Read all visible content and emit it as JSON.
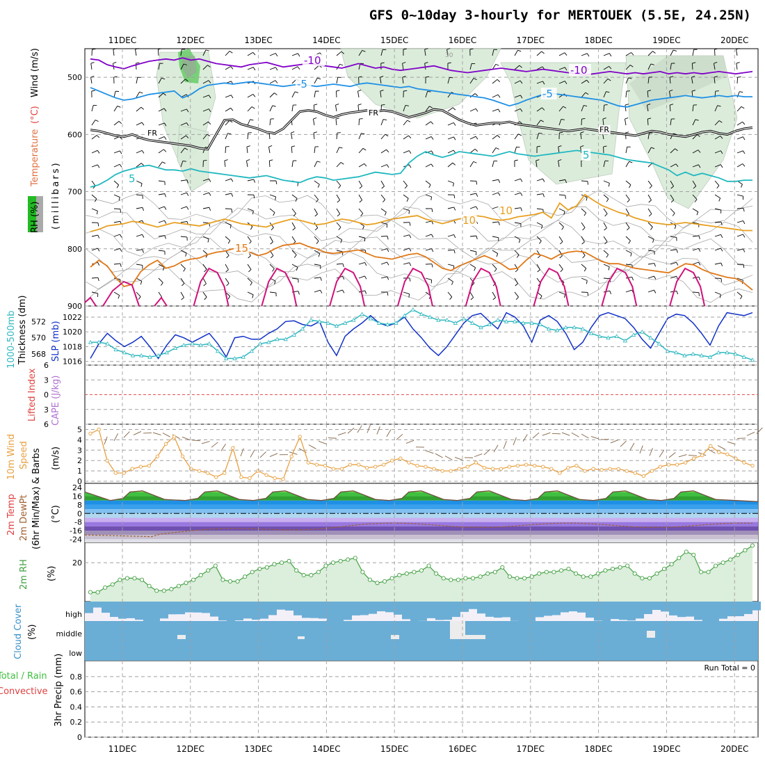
{
  "title": "GFS 0~10day 3-hourly for MERTOUEK (5.5E, 24.25N)",
  "dates": [
    "11DEC",
    "12DEC",
    "13DEC",
    "14DEC",
    "15DEC",
    "16DEC",
    "17DEC",
    "18DEC",
    "19DEC",
    "20DEC"
  ],
  "colors": {
    "purple": "#8000c8",
    "blue": "#1e90e6",
    "cyan": "#20b8c0",
    "orange_l": "#e8a020",
    "orange": "#e07818",
    "magenta": "#d0107a",
    "black": "#000000",
    "slp": "#1030c8",
    "thick": "#30b8c0",
    "wind": "#e8a040",
    "rh": "#40a040",
    "cloud": "#6aaed6"
  },
  "chart_data": [
    {
      "type": "line",
      "title": "",
      "panel": "upper-air",
      "ylabel_left": [
        "RH (%)",
        "Temperature (°C)",
        "Wind (m/s)"
      ],
      "ylabel_right": "(millibars)",
      "yticks": [
        500,
        600,
        700,
        800,
        900
      ],
      "ylim": [
        450,
        900
      ],
      "contour_labels": [
        "-10",
        "-10",
        "-5",
        "-5",
        "FR",
        "FR",
        "FR",
        "5",
        "5",
        "10",
        "10",
        "15",
        "30"
      ],
      "series": [
        {
          "color": "purple",
          "label": "-10",
          "values": [
            468,
            470,
            478,
            482,
            485,
            480,
            476,
            472,
            470,
            468,
            470,
            466,
            470,
            468,
            472,
            476,
            478,
            480,
            482,
            478,
            476,
            474,
            478,
            482,
            480,
            478,
            476,
            478,
            480,
            482,
            484,
            480,
            476,
            480,
            484,
            482,
            486,
            488,
            486,
            484,
            482,
            480,
            484,
            488,
            490,
            492,
            490,
            488,
            486,
            484,
            486,
            488,
            490,
            488,
            486,
            488,
            490,
            492,
            494,
            496,
            494,
            492,
            490,
            492,
            494,
            492,
            494,
            492,
            490,
            494,
            492,
            494,
            492,
            494,
            492,
            490,
            492,
            494,
            492,
            490
          ]
        },
        {
          "color": "blue",
          "label": "-5",
          "values": [
            518,
            524,
            530,
            536,
            540,
            538,
            534,
            530,
            528,
            526,
            524,
            536,
            530,
            520,
            514,
            512,
            510,
            512,
            510,
            508,
            510,
            512,
            514,
            516,
            514,
            512,
            514,
            516,
            514,
            512,
            514,
            516,
            512,
            510,
            512,
            514,
            516,
            518,
            516,
            520,
            522,
            524,
            526,
            528,
            530,
            532,
            534,
            536,
            540,
            545,
            550,
            546,
            540,
            535,
            530,
            528,
            530,
            532,
            534,
            536,
            538,
            540,
            545,
            550,
            552,
            548,
            544,
            540,
            538,
            536,
            534,
            532,
            534,
            536,
            534,
            532,
            534,
            532,
            534,
            534
          ]
        },
        {
          "color": "black",
          "label": "FR",
          "values": [
            592,
            594,
            598,
            602,
            604,
            600,
            606,
            610,
            612,
            614,
            616,
            618,
            620,
            624,
            626,
            600,
            575,
            574,
            582,
            586,
            590,
            596,
            598,
            590,
            575,
            560,
            558,
            560,
            566,
            570,
            565,
            562,
            560,
            558,
            560,
            558,
            560,
            565,
            570,
            566,
            562,
            556,
            558,
            566,
            574,
            580,
            584,
            582,
            580,
            580,
            578,
            582,
            584,
            586,
            588,
            590,
            592,
            594,
            592,
            590,
            592,
            594,
            596,
            598,
            600,
            602,
            598,
            594,
            596,
            600,
            602,
            604,
            600,
            596,
            594,
            598,
            600,
            594,
            590,
            588
          ]
        },
        {
          "color": "cyan",
          "label": "5",
          "values": [
            692,
            688,
            680,
            670,
            664,
            660,
            656,
            654,
            658,
            662,
            662,
            664,
            660,
            664,
            666,
            668,
            670,
            672,
            674,
            676,
            674,
            672,
            676,
            680,
            682,
            684,
            678,
            674,
            676,
            680,
            678,
            676,
            674,
            670,
            666,
            668,
            670,
            668,
            650,
            638,
            630,
            636,
            640,
            636,
            630,
            632,
            634,
            636,
            638,
            634,
            630,
            634,
            636,
            638,
            636,
            634,
            632,
            630,
            628,
            630,
            632,
            634,
            636,
            640,
            644,
            646,
            648,
            650,
            656,
            662,
            672,
            666,
            672,
            668,
            672,
            676,
            682,
            682,
            680,
            680
          ]
        },
        {
          "color": "orange_l",
          "label": "10",
          "values": [
            770,
            766,
            760,
            758,
            756,
            752,
            754,
            758,
            762,
            758,
            754,
            756,
            758,
            760,
            756,
            752,
            748,
            752,
            756,
            758,
            760,
            762,
            756,
            752,
            748,
            750,
            754,
            758,
            756,
            752,
            748,
            750,
            754,
            758,
            756,
            752,
            748,
            746,
            744,
            742,
            748,
            752,
            756,
            752,
            748,
            744,
            742,
            744,
            748,
            750,
            748,
            744,
            742,
            740,
            736,
            746,
            720,
            732,
            725,
            705,
            715,
            724,
            730,
            736,
            740,
            746,
            750,
            754,
            756,
            758,
            756,
            754,
            756,
            758,
            760,
            762,
            764,
            766,
            768,
            768
          ]
        },
        {
          "color": "orange",
          "label": "15",
          "values": [
            832,
            820,
            830,
            850,
            866,
            862,
            840,
            828,
            820,
            834,
            830,
            822,
            818,
            816,
            810,
            806,
            804,
            800,
            798,
            806,
            812,
            808,
            800,
            794,
            792,
            790,
            796,
            800,
            806,
            808,
            806,
            804,
            802,
            808,
            814,
            816,
            818,
            814,
            810,
            808,
            814,
            824,
            834,
            838,
            830,
            824,
            818,
            812,
            818,
            826,
            836,
            834,
            820,
            808,
            812,
            818,
            810,
            806,
            804,
            806,
            814,
            822,
            826,
            826,
            830,
            834,
            836,
            838,
            840,
            842,
            834,
            826,
            828,
            836,
            842,
            846,
            850,
            852,
            860,
            872
          ]
        }
      ],
      "diurnal_peaks": [
        12.6,
        13.6,
        14.6,
        15.6,
        16.6,
        17.6,
        18.6,
        19.6
      ]
    },
    {
      "type": "line",
      "panel": "pressure",
      "ylabel_left": [
        "1000-500mb",
        "Thickness (dm)"
      ],
      "ylabel_right": "SLP (mb)",
      "yticks_left": [
        568,
        570,
        572
      ],
      "yticks_right": [
        1016,
        1018,
        1020,
        1022
      ],
      "ylim": [
        1015.5,
        1023.5
      ],
      "series": [
        {
          "name": "SLP",
          "color": "slp",
          "values": [
            1016.4,
            1018.4,
            1019.8,
            1018.8,
            1018,
            1018.6,
            1019.4,
            1018,
            1016.4,
            1018.2,
            1019.6,
            1019.2,
            1018.6,
            1019.2,
            1019.8,
            1018.4,
            1016.6,
            1019.2,
            1019.4,
            1019,
            1019,
            1019.8,
            1020.4,
            1021.4,
            1021.5,
            1021,
            1020.8,
            1021.4,
            1018.6,
            1016.8,
            1019.4,
            1020.4,
            1021.2,
            1022.2,
            1021.2,
            1020.8,
            1021.2,
            1022,
            1020.4,
            1019.2,
            1017.8,
            1016.8,
            1018,
            1019.6,
            1021.2,
            1022.2,
            1022.5,
            1021.4,
            1020.4,
            1022.6,
            1022,
            1020.8,
            1018.6,
            1021.6,
            1022.2,
            1021.4,
            1019.8,
            1017.6,
            1018.6,
            1020.6,
            1022.2,
            1022.6,
            1022.2,
            1021.8,
            1020.6,
            1019,
            1017.8,
            1019.8,
            1021.8,
            1022.4,
            1022.2,
            1021.2,
            1019.8,
            1018.2,
            1020.8,
            1022.6,
            1022.4,
            1022.2,
            1022.6
          ]
        },
        {
          "name": "Thickness",
          "color": "thick",
          "values": [
            1018.6,
            1018.6,
            1018.4,
            1017.6,
            1017.2,
            1016.8,
            1016.8,
            1016.6,
            1016.8,
            1017.2,
            1017.8,
            1018.2,
            1018.4,
            1018.2,
            1018.4,
            1017.4,
            1016.4,
            1016.4,
            1016.6,
            1017.4,
            1018.4,
            1018.6,
            1019,
            1019,
            1019.6,
            1020.4,
            1021.6,
            1021.4,
            1021.2,
            1020.8,
            1021.2,
            1021.6,
            1022.4,
            1021.8,
            1021.2,
            1021,
            1021.2,
            1022.2,
            1023,
            1022.4,
            1022,
            1021.6,
            1021.6,
            1021.2,
            1021.8,
            1021.2,
            1020.6,
            1021,
            1021.6,
            1021.4,
            1021.4,
            1021.2,
            1021.2,
            1021,
            1020.4,
            1020.2,
            1020.6,
            1020.6,
            1020.4,
            1019.8,
            1019.4,
            1019.2,
            1019.4,
            1018.8,
            1019.6,
            1020,
            1019.2,
            1018.4,
            1017.4,
            1017.2,
            1016.8,
            1017,
            1016.8,
            1016.6,
            1017.2,
            1017.2,
            1017,
            1016.6,
            1016.2
          ]
        }
      ]
    },
    {
      "type": "line",
      "panel": "stability",
      "ylabel_left": [
        "Lifted Index"
      ],
      "ylabel_right": "CAPE (J/kg)",
      "yticks": [
        "-6",
        "-3",
        "0",
        "3",
        "6"
      ],
      "ylim": [
        -6,
        6
      ]
    },
    {
      "type": "line",
      "panel": "surface-wind",
      "ylabel_left": [
        "10m Wind",
        "Speed",
        "& Barbs"
      ],
      "ylabel_right": "(m/s)",
      "yticks": [
        0,
        1,
        2,
        3,
        4,
        5
      ],
      "ylim": [
        -0.2,
        5.5
      ],
      "series": [
        {
          "name": "Speed",
          "color": "wind",
          "values": [
            4.6,
            5.0,
            2.0,
            0.8,
            0.8,
            1.2,
            1.4,
            1.5,
            2.4,
            3.6,
            4.3,
            2.4,
            1.2,
            1.0,
            0.8,
            0.4,
            0.8,
            3.2,
            0.4,
            0.3,
            1.0,
            0.6,
            0.3,
            0.2,
            2.4,
            4.3,
            1.8,
            1.6,
            1.5,
            1.2,
            1.2,
            1.6,
            1.6,
            1.3,
            1.4,
            1.6,
            2.0,
            2.2,
            1.8,
            1.5,
            1.4,
            1.2,
            1.0,
            1.0,
            1.2,
            1.4,
            1.8,
            1.3,
            1.2,
            1.2,
            1.4,
            1.5,
            1.6,
            1.5,
            1.4,
            1.2,
            0.8,
            1.3,
            1.5,
            1.0,
            1.2,
            1.1,
            1.2,
            1.2,
            1.0,
            0.8,
            0.5,
            1.0,
            1.4,
            1.6,
            1.6,
            1.8,
            2.2,
            2.5,
            3.4,
            2.8,
            2.6,
            2.2,
            1.8,
            1.5
          ]
        }
      ]
    },
    {
      "type": "area",
      "panel": "surface-temp",
      "ylabel_left": [
        "2m Temp",
        "2m DewPt",
        "(6hr Min/Max)"
      ],
      "ylabel_right": "(°C)",
      "yticks": [
        24,
        16,
        8,
        0,
        -8,
        -16,
        -24
      ],
      "ylim": [
        -27,
        28
      ],
      "diurnal_peaks": [
        11.5,
        12.6,
        13.6,
        14.6,
        15.6,
        16.6,
        17.6,
        18.6,
        19.6
      ],
      "temp_max": 21,
      "temp_min": 11
    },
    {
      "type": "area",
      "panel": "surface-rh",
      "ylabel_left": [
        "2m RH"
      ],
      "ylabel_right": "(%)",
      "yticks": [
        20
      ],
      "ylim": [
        -5,
        33
      ],
      "series": [
        {
          "name": "RH",
          "color": "rh",
          "values": [
            1,
            1,
            4,
            6,
            9,
            10,
            10,
            9,
            5,
            2,
            2,
            3,
            5,
            7,
            9,
            12,
            15,
            18,
            9,
            8,
            8,
            11,
            14,
            16,
            17,
            19,
            20,
            21,
            15,
            12,
            12,
            14,
            18,
            20,
            21,
            22,
            23,
            14,
            9,
            7,
            8,
            10,
            12,
            13,
            14,
            15,
            18,
            13,
            10,
            9,
            9,
            10,
            10,
            11,
            13,
            14,
            17,
            11,
            10,
            10,
            11,
            13,
            14,
            14,
            15,
            16,
            13,
            11,
            11,
            13,
            15,
            16,
            17,
            18,
            13,
            10,
            10,
            13,
            16,
            19,
            23,
            27,
            25,
            14,
            14,
            18,
            20,
            22,
            25,
            28,
            31
          ]
        }
      ]
    },
    {
      "type": "bar",
      "panel": "cloud-cover",
      "ylabel_left": [
        "Cloud Cover"
      ],
      "ylabel_right": "(%)",
      "categories": [
        "high",
        "middle",
        "low"
      ]
    },
    {
      "type": "bar",
      "panel": "precipitation",
      "ylabel_left": [
        "Total / Rain",
        "Convective"
      ],
      "ylabel_right": "3hr Precip (mm)",
      "yticks": [
        "0",
        "0.2",
        "0.4",
        "0.6",
        "0.8"
      ],
      "ylim": [
        0,
        0.9
      ],
      "annotation": "Run Total = 0",
      "values": []
    }
  ]
}
